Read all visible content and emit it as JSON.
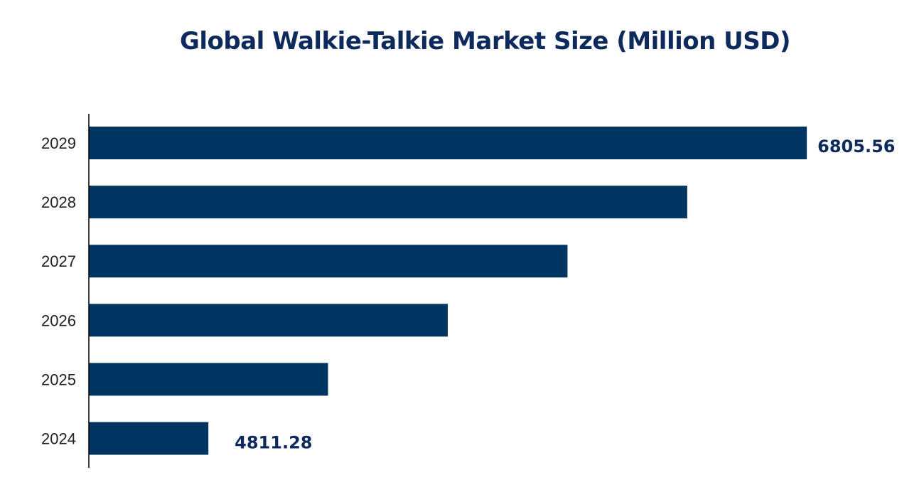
{
  "chart_data": {
    "type": "bar",
    "orientation": "horizontal",
    "title": "Global Walkie-Talkie Market Size (Million USD)",
    "xlabel": "",
    "ylabel": "",
    "categories": [
      "2029",
      "2028",
      "2027",
      "2026",
      "2025",
      "2024"
    ],
    "values": [
      6805.56,
      6407,
      6008,
      5609,
      5210,
      4811.28
    ],
    "data_labels": {
      "2029": "6805.56",
      "2024": "4811.28"
    },
    "xlim": [
      4413,
      6850
    ],
    "grid": false,
    "legend": "none",
    "colors": {
      "bar": "#003461",
      "title": "#0e2a5c",
      "label": "#0e2a5c"
    }
  }
}
